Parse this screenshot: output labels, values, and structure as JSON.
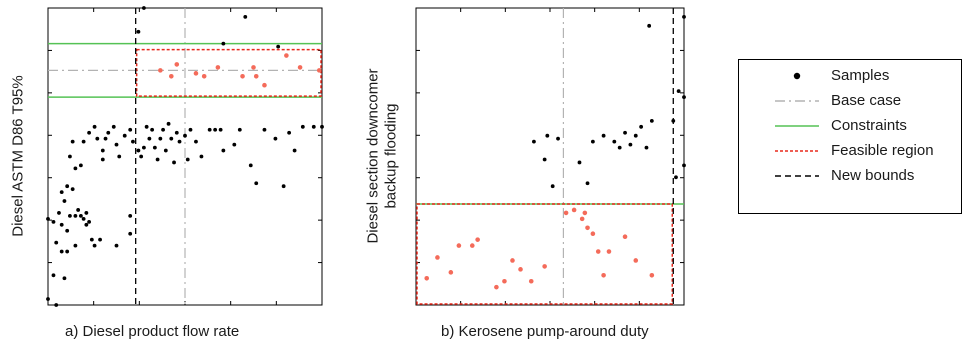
{
  "captions": {
    "a": "a) Diesel product flow rate",
    "b": "b) Kerosene pump-around duty"
  },
  "ylabels": {
    "a": "Diesel ASTM D86 T95%",
    "b_line1": "Diesel section downcomer",
    "b_line2": "backup flooding"
  },
  "legend": [
    {
      "label": "Samples",
      "style": "dot",
      "color": "#000000"
    },
    {
      "label": "Base case",
      "style": "dashdot",
      "color": "#b3b3b3"
    },
    {
      "label": "Constraints",
      "style": "solid",
      "color": "#55c255"
    },
    {
      "label": "Feasible region",
      "style": "dotted",
      "color": "#e8291c"
    },
    {
      "label": "New bounds",
      "style": "dashed",
      "color": "#000000"
    }
  ],
  "colors": {
    "sample": "#000000",
    "feasible": "#f46b5a",
    "base_case": "#b3b3b3",
    "constraint": "#55c255",
    "feasible_box": "#e8291c",
    "new_bounds": "#000000"
  },
  "chart_data": [
    {
      "id": "a",
      "type": "scatter",
      "title": "",
      "xlabel": "a) Diesel product flow rate",
      "ylabel": "Diesel ASTM D86 T95%",
      "xlim": [
        0,
        1
      ],
      "ylim": [
        0,
        1
      ],
      "grid": false,
      "legend_position": "right",
      "base_case": {
        "x": 0.5,
        "y": 0.79
      },
      "constraints_y": [
        0.88,
        0.7
      ],
      "new_bounds_x": 0.32,
      "feasible_box": {
        "x": [
          0.32,
          1.0
        ],
        "y": [
          0.7,
          0.86
        ]
      },
      "samples": [
        [
          0.0,
          0.02
        ],
        [
          0.03,
          0.0
        ],
        [
          0.02,
          0.1
        ],
        [
          0.06,
          0.09
        ],
        [
          0.05,
          0.18
        ],
        [
          0.07,
          0.18
        ],
        [
          0.03,
          0.21
        ],
        [
          0.05,
          0.27
        ],
        [
          0.07,
          0.25
        ],
        [
          0.04,
          0.31
        ],
        [
          0.06,
          0.35
        ],
        [
          0.08,
          0.3
        ],
        [
          0.1,
          0.3
        ],
        [
          0.12,
          0.3
        ],
        [
          0.11,
          0.32
        ],
        [
          0.13,
          0.29
        ],
        [
          0.14,
          0.31
        ],
        [
          0.15,
          0.28
        ],
        [
          0.16,
          0.22
        ],
        [
          0.1,
          0.2
        ],
        [
          0.14,
          0.27
        ],
        [
          0.17,
          0.2
        ],
        [
          0.19,
          0.22
        ],
        [
          0.25,
          0.2
        ],
        [
          0.3,
          0.24
        ],
        [
          0.3,
          0.3
        ],
        [
          0.0,
          0.29
        ],
        [
          0.02,
          0.28
        ],
        [
          0.05,
          0.38
        ],
        [
          0.07,
          0.4
        ],
        [
          0.09,
          0.39
        ],
        [
          0.08,
          0.5
        ],
        [
          0.1,
          0.46
        ],
        [
          0.12,
          0.47
        ],
        [
          0.09,
          0.55
        ],
        [
          0.13,
          0.55
        ],
        [
          0.15,
          0.58
        ],
        [
          0.17,
          0.6
        ],
        [
          0.18,
          0.56
        ],
        [
          0.2,
          0.49
        ],
        [
          0.2,
          0.52
        ],
        [
          0.21,
          0.56
        ],
        [
          0.22,
          0.58
        ],
        [
          0.24,
          0.6
        ],
        [
          0.25,
          0.54
        ],
        [
          0.26,
          0.5
        ],
        [
          0.28,
          0.57
        ],
        [
          0.3,
          0.59
        ],
        [
          0.31,
          0.55
        ],
        [
          0.33,
          0.52
        ],
        [
          0.34,
          0.5
        ],
        [
          0.35,
          0.53
        ],
        [
          0.36,
          0.6
        ],
        [
          0.37,
          0.56
        ],
        [
          0.38,
          0.59
        ],
        [
          0.39,
          0.53
        ],
        [
          0.4,
          0.49
        ],
        [
          0.41,
          0.56
        ],
        [
          0.42,
          0.59
        ],
        [
          0.43,
          0.52
        ],
        [
          0.44,
          0.61
        ],
        [
          0.45,
          0.56
        ],
        [
          0.46,
          0.48
        ],
        [
          0.47,
          0.58
        ],
        [
          0.48,
          0.55
        ],
        [
          0.5,
          0.57
        ],
        [
          0.51,
          0.49
        ],
        [
          0.52,
          0.59
        ],
        [
          0.54,
          0.55
        ],
        [
          0.56,
          0.5
        ],
        [
          0.59,
          0.59
        ],
        [
          0.61,
          0.59
        ],
        [
          0.63,
          0.59
        ],
        [
          0.64,
          0.52
        ],
        [
          0.68,
          0.54
        ],
        [
          0.7,
          0.59
        ],
        [
          0.74,
          0.47
        ],
        [
          0.76,
          0.41
        ],
        [
          0.79,
          0.59
        ],
        [
          0.83,
          0.56
        ],
        [
          0.86,
          0.4
        ],
        [
          0.88,
          0.58
        ],
        [
          0.9,
          0.52
        ],
        [
          0.93,
          0.6
        ],
        [
          0.97,
          0.6
        ],
        [
          1.0,
          0.6
        ],
        [
          0.35,
          1.0
        ],
        [
          0.33,
          0.92
        ],
        [
          0.72,
          0.97
        ],
        [
          0.64,
          0.88
        ],
        [
          0.84,
          0.87
        ]
      ],
      "feasible": [
        [
          0.41,
          0.79
        ],
        [
          0.45,
          0.77
        ],
        [
          0.47,
          0.81
        ],
        [
          0.54,
          0.78
        ],
        [
          0.57,
          0.77
        ],
        [
          0.62,
          0.8
        ],
        [
          0.71,
          0.77
        ],
        [
          0.75,
          0.8
        ],
        [
          0.76,
          0.77
        ],
        [
          0.79,
          0.74
        ],
        [
          0.87,
          0.84
        ],
        [
          0.92,
          0.8
        ],
        [
          0.99,
          0.79
        ]
      ]
    },
    {
      "id": "b",
      "type": "scatter",
      "title": "",
      "xlabel": "b) Kerosene pump-around duty",
      "ylabel": "Diesel section downcomer backup flooding",
      "xlim": [
        0,
        1
      ],
      "ylim": [
        0,
        1
      ],
      "grid": false,
      "legend_position": "right",
      "base_case_x": 0.55,
      "constraint_y": 0.34,
      "new_bounds_x": 0.96,
      "feasible_box": {
        "x": [
          0.0,
          0.96
        ],
        "y": [
          0.0,
          0.34
        ]
      },
      "samples": [
        [
          0.44,
          0.55
        ],
        [
          0.49,
          0.57
        ],
        [
          0.48,
          0.49
        ],
        [
          0.51,
          0.4
        ],
        [
          0.53,
          0.56
        ],
        [
          0.61,
          0.48
        ],
        [
          0.66,
          0.55
        ],
        [
          0.7,
          0.57
        ],
        [
          0.74,
          0.55
        ],
        [
          0.76,
          0.53
        ],
        [
          0.78,
          0.58
        ],
        [
          0.8,
          0.54
        ],
        [
          0.82,
          0.57
        ],
        [
          0.84,
          0.6
        ],
        [
          0.86,
          0.53
        ],
        [
          0.88,
          0.62
        ],
        [
          0.98,
          0.72
        ],
        [
          1.0,
          0.7
        ],
        [
          1.0,
          0.47
        ],
        [
          0.97,
          0.43
        ],
        [
          0.96,
          0.62
        ],
        [
          0.87,
          0.94
        ],
        [
          1.0,
          0.97
        ],
        [
          0.64,
          0.41
        ]
      ],
      "feasible": [
        [
          0.04,
          0.09
        ],
        [
          0.08,
          0.16
        ],
        [
          0.13,
          0.11
        ],
        [
          0.16,
          0.2
        ],
        [
          0.21,
          0.2
        ],
        [
          0.23,
          0.22
        ],
        [
          0.3,
          0.06
        ],
        [
          0.33,
          0.08
        ],
        [
          0.36,
          0.15
        ],
        [
          0.39,
          0.12
        ],
        [
          0.43,
          0.08
        ],
        [
          0.48,
          0.13
        ],
        [
          0.56,
          0.31
        ],
        [
          0.59,
          0.32
        ],
        [
          0.62,
          0.29
        ],
        [
          0.63,
          0.31
        ],
        [
          0.64,
          0.26
        ],
        [
          0.66,
          0.24
        ],
        [
          0.68,
          0.18
        ],
        [
          0.7,
          0.1
        ],
        [
          0.72,
          0.18
        ],
        [
          0.78,
          0.23
        ],
        [
          0.82,
          0.15
        ],
        [
          0.88,
          0.1
        ]
      ]
    }
  ]
}
